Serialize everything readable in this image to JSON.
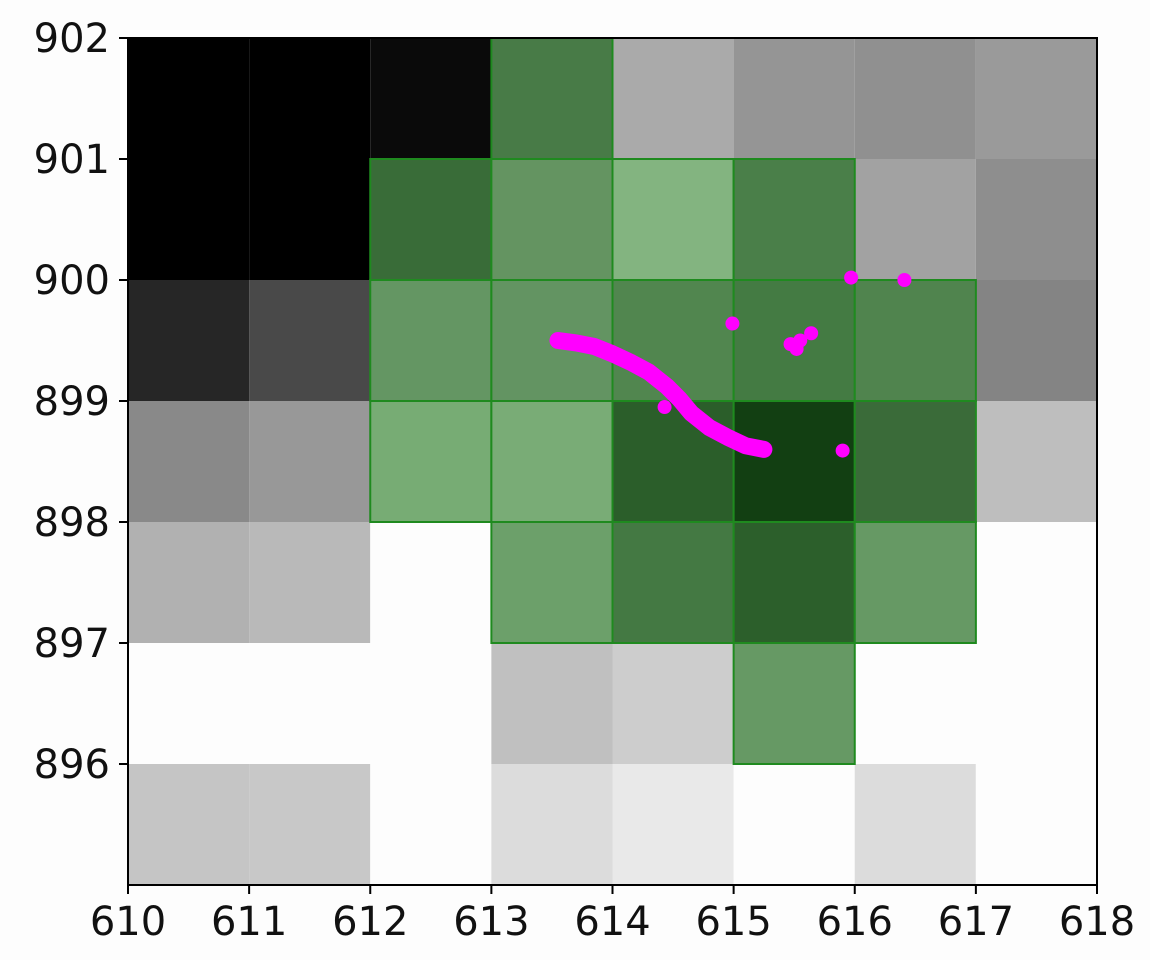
{
  "chart_data": {
    "type": "heatmap",
    "title": "",
    "xlabel": "",
    "ylabel": "",
    "xlim": [
      610,
      618
    ],
    "ylim": [
      895,
      902
    ],
    "xticks": [
      "610",
      "611",
      "612",
      "613",
      "614",
      "615",
      "616",
      "617",
      "618"
    ],
    "yticks": [
      "896",
      "897",
      "898",
      "899",
      "900",
      "901",
      "902"
    ],
    "grid": false,
    "grayscale_cells": [
      {
        "x": 610,
        "y": 901,
        "v": 0.0
      },
      {
        "x": 611,
        "y": 901,
        "v": 0.0
      },
      {
        "x": 612,
        "y": 901,
        "v": 0.04
      },
      {
        "x": 614,
        "y": 901,
        "v": 0.67
      },
      {
        "x": 615,
        "y": 901,
        "v": 0.59
      },
      {
        "x": 616,
        "y": 901,
        "v": 0.57
      },
      {
        "x": 617,
        "y": 901,
        "v": 0.61
      },
      {
        "x": 610,
        "y": 900,
        "v": 0.0
      },
      {
        "x": 611,
        "y": 900,
        "v": 0.0
      },
      {
        "x": 616,
        "y": 900,
        "v": 0.64
      },
      {
        "x": 617,
        "y": 900,
        "v": 0.56
      },
      {
        "x": 610,
        "y": 899,
        "v": 0.15
      },
      {
        "x": 611,
        "y": 899,
        "v": 0.29
      },
      {
        "x": 617,
        "y": 899,
        "v": 0.52
      },
      {
        "x": 610,
        "y": 898,
        "v": 0.54
      },
      {
        "x": 611,
        "y": 898,
        "v": 0.6
      },
      {
        "x": 617,
        "y": 898,
        "v": 0.75
      },
      {
        "x": 610,
        "y": 897,
        "v": 0.7
      },
      {
        "x": 611,
        "y": 897,
        "v": 0.73
      },
      {
        "x": 612,
        "y": 897,
        "v": 1.0
      },
      {
        "x": 616,
        "y": 897,
        "v": 1.0
      },
      {
        "x": 617,
        "y": 897,
        "v": 1.0
      },
      {
        "x": 610,
        "y": 896,
        "v": 1.0
      },
      {
        "x": 611,
        "y": 896,
        "v": 1.0
      },
      {
        "x": 612,
        "y": 896,
        "v": 1.0
      },
      {
        "x": 613,
        "y": 896,
        "v": 0.76
      },
      {
        "x": 614,
        "y": 896,
        "v": 0.81
      },
      {
        "x": 616,
        "y": 896,
        "v": 1.0
      },
      {
        "x": 617,
        "y": 896,
        "v": 1.0
      },
      {
        "x": 610,
        "y": 895,
        "v": 0.78
      },
      {
        "x": 611,
        "y": 895,
        "v": 0.79
      },
      {
        "x": 612,
        "y": 895,
        "v": 1.0
      },
      {
        "x": 613,
        "y": 895,
        "v": 0.87
      },
      {
        "x": 614,
        "y": 895,
        "v": 0.92
      },
      {
        "x": 615,
        "y": 895,
        "v": 1.0
      },
      {
        "x": 616,
        "y": 895,
        "v": 0.87
      },
      {
        "x": 617,
        "y": 895,
        "v": 1.0
      }
    ],
    "green_cells": [
      {
        "x": 613,
        "y": 901,
        "color": "#487b47"
      },
      {
        "x": 612,
        "y": 900,
        "color": "#396c38"
      },
      {
        "x": 613,
        "y": 900,
        "color": "#649461"
      },
      {
        "x": 614,
        "y": 900,
        "color": "#83b480"
      },
      {
        "x": 615,
        "y": 900,
        "color": "#4a7f49"
      },
      {
        "x": 612,
        "y": 899,
        "color": "#649663"
      },
      {
        "x": 613,
        "y": 899,
        "color": "#639462"
      },
      {
        "x": 614,
        "y": 899,
        "color": "#51864f"
      },
      {
        "x": 615,
        "y": 899,
        "color": "#447b43"
      },
      {
        "x": 616,
        "y": 899,
        "color": "#50844e"
      },
      {
        "x": 612,
        "y": 898,
        "color": "#77ac74"
      },
      {
        "x": 613,
        "y": 898,
        "color": "#79ac76"
      },
      {
        "x": 614,
        "y": 898,
        "color": "#2b5e2a"
      },
      {
        "x": 615,
        "y": 898,
        "color": "#123f12"
      },
      {
        "x": 616,
        "y": 898,
        "color": "#3a6b39"
      },
      {
        "x": 613,
        "y": 897,
        "color": "#6ca06a"
      },
      {
        "x": 614,
        "y": 897,
        "color": "#447943"
      },
      {
        "x": 615,
        "y": 897,
        "color": "#2c5f2b"
      },
      {
        "x": 616,
        "y": 897,
        "color": "#669964"
      },
      {
        "x": 615,
        "y": 896,
        "color": "#669964"
      }
    ],
    "green_edge_color": "#1f8a1f",
    "marker_color": "#ff00ff",
    "trajectory": [
      [
        613.55,
        899.5
      ],
      [
        613.7,
        899.48
      ],
      [
        613.85,
        899.45
      ],
      [
        614.0,
        899.39
      ],
      [
        614.15,
        899.32
      ],
      [
        614.3,
        899.24
      ],
      [
        614.45,
        899.12
      ],
      [
        614.55,
        899.02
      ],
      [
        614.65,
        898.9
      ],
      [
        614.8,
        898.78
      ],
      [
        614.95,
        898.7
      ],
      [
        615.1,
        898.63
      ],
      [
        615.25,
        898.6
      ]
    ],
    "points": [
      [
        614.43,
        898.95
      ],
      [
        614.99,
        899.64
      ],
      [
        615.47,
        899.47
      ],
      [
        615.52,
        899.43
      ],
      [
        615.55,
        899.5
      ],
      [
        615.64,
        899.56
      ],
      [
        615.97,
        900.02
      ],
      [
        616.41,
        900.0
      ],
      [
        615.9,
        898.59
      ]
    ]
  }
}
